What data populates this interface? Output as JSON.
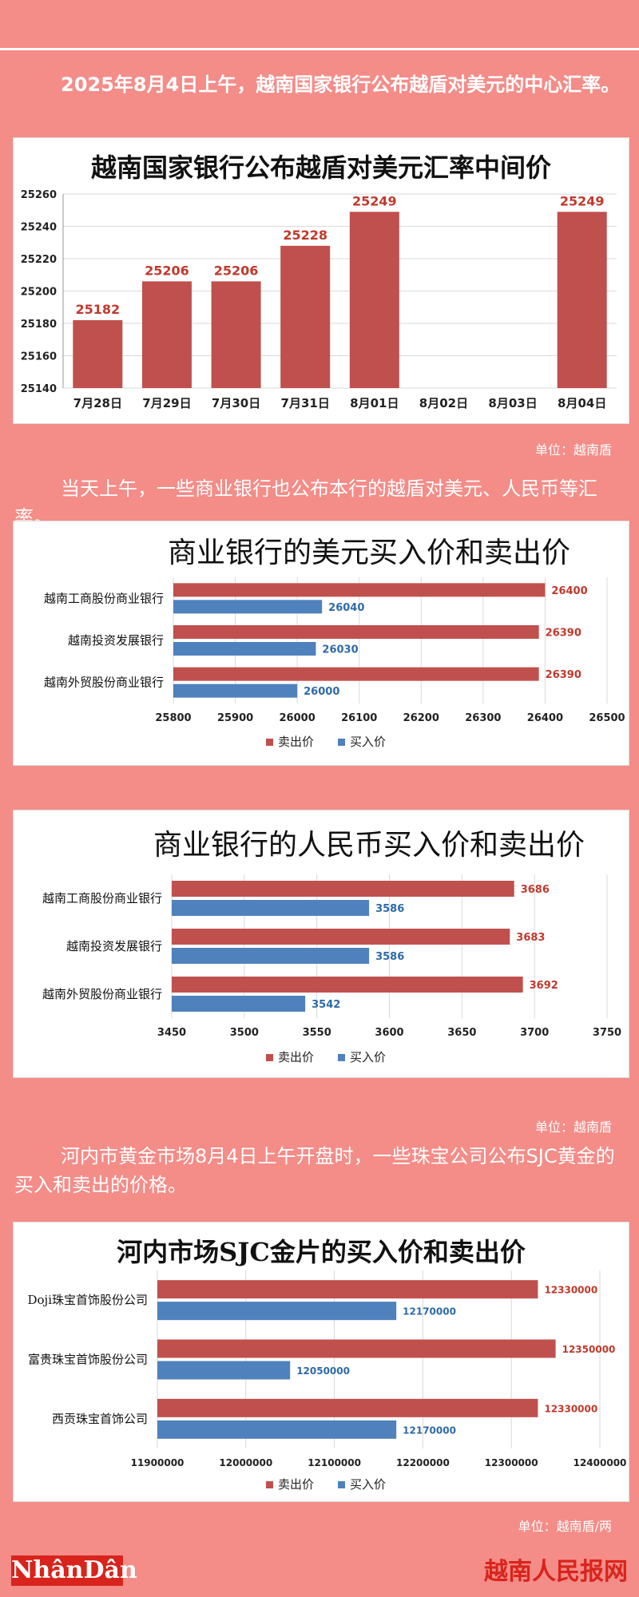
{
  "intro": {
    "p1": "2025年8月4日上午，越南国家银行公布越盾对美元的中心汇率。",
    "unit1": "单位：越南盾",
    "p2": "当天上午，一些商业银行也公布本行的越盾对美元、人民币等汇率。",
    "unit2": "单位：越南盾",
    "p3": "河内市黄金市场8月4日上午开盘时，一些珠宝公司公布SJC黄金的买入和卖出的价格。",
    "unit3": "单位：越南盾/两"
  },
  "chart_data": [
    {
      "type": "bar",
      "title": "越南国家银行公布越盾对美元汇率中间价",
      "categories": [
        "7月28日",
        "7月29日",
        "7月30日",
        "7月31日",
        "8月01日",
        "8月02日",
        "8月03日",
        "8月04日"
      ],
      "values": [
        25182,
        25206,
        25206,
        25228,
        25249,
        null,
        null,
        25249
      ],
      "value_labels": [
        "25182",
        "25206",
        "25206",
        "25228",
        "25249",
        "",
        "",
        "25249"
      ],
      "ylim": [
        25140,
        25260
      ],
      "yticks": [
        25140,
        25160,
        25180,
        25200,
        25220,
        25240,
        25260
      ],
      "color": "#c0504d",
      "grid": true
    },
    {
      "type": "bar",
      "orientation": "horizontal",
      "title": "商业银行的美元买入价和卖出价",
      "categories": [
        "越南工商股份商业银行",
        "越南投资发展银行",
        "越南外贸股份商业银行"
      ],
      "series": [
        {
          "name": "卖出价",
          "values": [
            26400,
            26390,
            26390
          ],
          "labels": [
            "26400",
            "26390",
            "26390"
          ],
          "color": "#c0504d"
        },
        {
          "name": "买入价",
          "values": [
            26040,
            26030,
            26000
          ],
          "labels": [
            "26040",
            "26030",
            "26000"
          ],
          "color": "#4f81bd"
        }
      ],
      "xlim": [
        25800,
        26500
      ],
      "xticks": [
        "25800",
        "25900",
        "26000",
        "26100",
        "26200",
        "26300",
        "26400",
        "26500"
      ],
      "legend": "bottom",
      "grid": true
    },
    {
      "type": "bar",
      "orientation": "horizontal",
      "title": "商业银行的人民币买入价和卖出价",
      "categories": [
        "越南工商股份商业银行",
        "越南投资发展银行",
        "越南外贸股份商业银行"
      ],
      "series": [
        {
          "name": "卖出价",
          "values": [
            3686,
            3683,
            3692
          ],
          "labels": [
            "3686",
            "3683",
            "3692"
          ],
          "color": "#c0504d"
        },
        {
          "name": "买入价",
          "values": [
            3586,
            3586,
            3542
          ],
          "labels": [
            "3586",
            "3586",
            "3542"
          ],
          "color": "#4f81bd"
        }
      ],
      "xlim": [
        3450,
        3750
      ],
      "xticks": [
        "3450",
        "3500",
        "3550",
        "3600",
        "3650",
        "3700",
        "3750"
      ],
      "legend": "bottom",
      "grid": true
    },
    {
      "type": "bar",
      "orientation": "horizontal",
      "title": "河内市场SJC金片的买入价和卖出价",
      "categories": [
        "Doji珠宝首饰股份公司",
        "富贵珠宝首饰股份公司",
        "西贡珠宝首饰公司"
      ],
      "series": [
        {
          "name": "卖出价",
          "values": [
            12330000,
            12350000,
            12330000
          ],
          "labels": [
            "12330000",
            "12350000",
            "12330000"
          ],
          "color": "#c0504d"
        },
        {
          "name": "买入价",
          "values": [
            12170000,
            12050000,
            12170000
          ],
          "labels": [
            "12170000",
            "12050000",
            "12170000"
          ],
          "color": "#4f81bd"
        }
      ],
      "xlim": [
        11900000,
        12400000
      ],
      "xticks": [
        "11900000",
        "12000000",
        "12100000",
        "12200000",
        "12300000",
        "12400000"
      ],
      "legend": "bottom",
      "grid": true
    }
  ],
  "logos": {
    "left": "NhânDân",
    "right": "越南人民报网"
  }
}
